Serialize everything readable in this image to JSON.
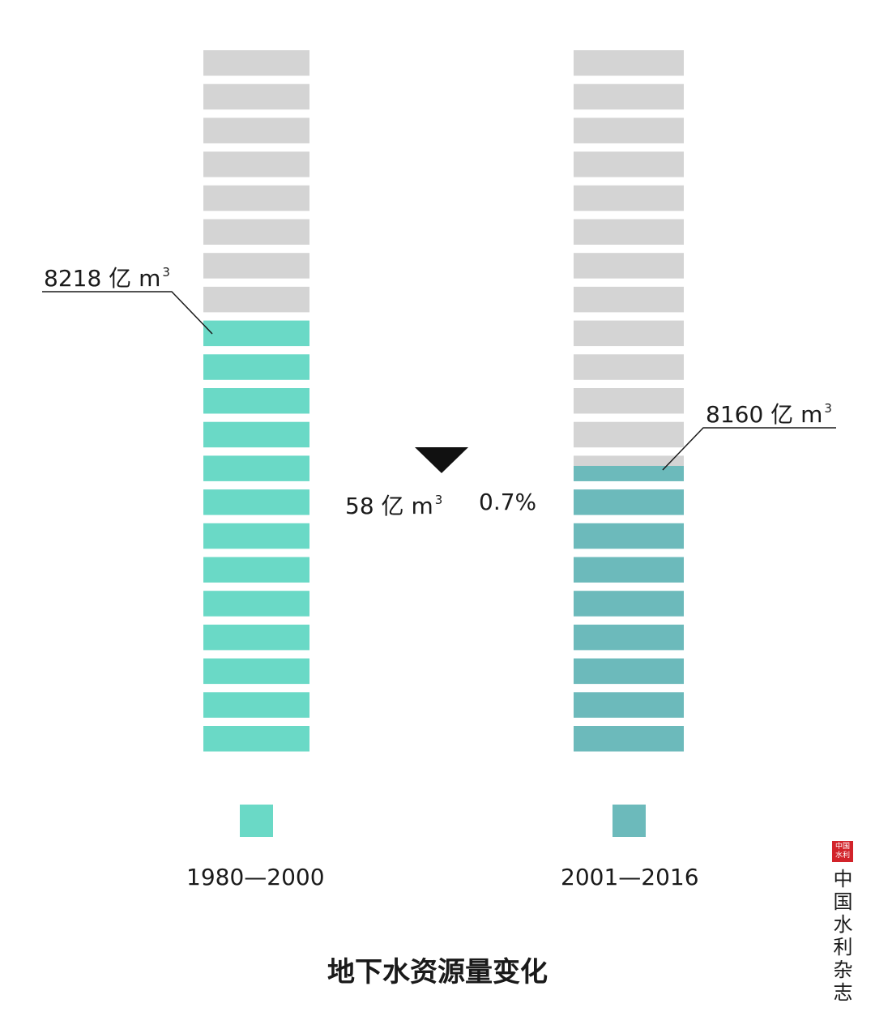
{
  "chart_data": {
    "type": "bar",
    "title": "地下水资源量变化",
    "series": [
      {
        "name": "1980—2000",
        "value": 8218,
        "value_label": "8218",
        "unit": "亿 m",
        "unit_sup": "3",
        "color": "#6ad9c6"
      },
      {
        "name": "2001—2016",
        "value": 8160,
        "value_label": "8160",
        "unit": "亿 m",
        "unit_sup": "3",
        "color": "#6cbabb"
      }
    ],
    "empty_color": "#d4d4d4",
    "segments": 21,
    "filled_segments": [
      13,
      8.6
    ],
    "change": {
      "amount_label": "58",
      "unit": "亿 m",
      "unit_sup": "3",
      "percent_label": "0.7%",
      "direction": "decrease"
    }
  },
  "publisher": {
    "name": "中国水利杂志",
    "seal_text": "中国水利"
  }
}
